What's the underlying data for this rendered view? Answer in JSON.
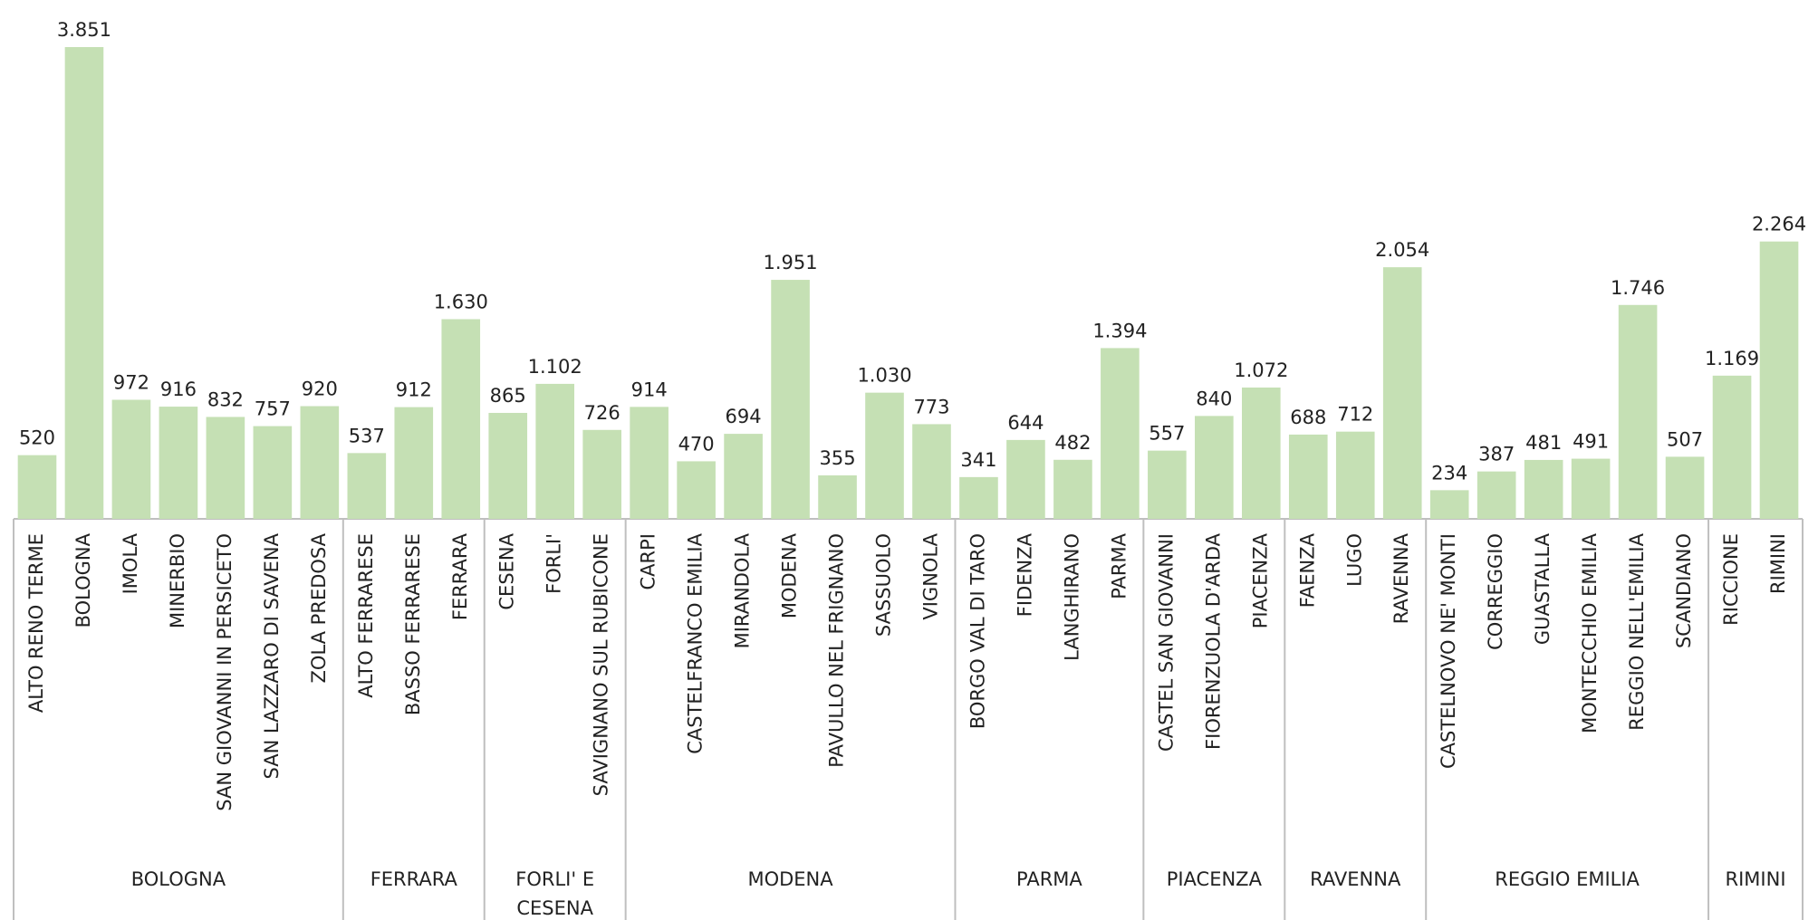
{
  "chart_data": {
    "type": "bar",
    "color": "#c5e0b4",
    "groups": [
      {
        "name": "BOLOGNA",
        "categories": [
          "ALTO RENO TERME",
          "BOLOGNA",
          "IMOLA",
          "MINERBIO",
          "SAN GIOVANNI IN PERSICETO",
          "SAN LAZZARO DI SAVENA",
          "ZOLA PREDOSA"
        ]
      },
      {
        "name": "FERRARA",
        "categories": [
          "ALTO FERRARESE",
          "BASSO FERRARESE",
          "FERRARA"
        ]
      },
      {
        "name": "FORLI' E CESENA",
        "categories": [
          "CESENA",
          "FORLI'",
          "SAVIGNANO SUL RUBICONE"
        ]
      },
      {
        "name": "MODENA",
        "categories": [
          "CARPI",
          "CASTELFRANCO EMILIA",
          "MIRANDOLA",
          "MODENA",
          "PAVULLO NEL FRIGNANO",
          "SASSUOLO",
          "VIGNOLA"
        ]
      },
      {
        "name": "PARMA",
        "categories": [
          "BORGO VAL DI TARO",
          "FIDENZA",
          "LANGHIRANO",
          "PARMA"
        ]
      },
      {
        "name": "PIACENZA",
        "categories": [
          "CASTEL SAN GIOVANNI",
          "FIORENZUOLA D'ARDA",
          "PIACENZA"
        ]
      },
      {
        "name": "RAVENNA",
        "categories": [
          "FAENZA",
          "LUGO",
          "RAVENNA"
        ]
      },
      {
        "name": "REGGIO EMILIA",
        "categories": [
          "CASTELNOVO NE' MONTI",
          "CORREGGIO",
          "GUASTALLA",
          "MONTECCHIO EMILIA",
          "REGGIO NELL'EMILIA",
          "SCANDIANO"
        ]
      },
      {
        "name": "RIMINI",
        "categories": [
          "RICCIONE",
          "RIMINI"
        ]
      }
    ],
    "values": [
      520,
      3851,
      972,
      916,
      832,
      757,
      920,
      537,
      912,
      1630,
      865,
      1102,
      726,
      914,
      470,
      694,
      1951,
      355,
      1030,
      773,
      341,
      644,
      482,
      1394,
      557,
      840,
      1072,
      688,
      712,
      2054,
      234,
      387,
      481,
      491,
      1746,
      507,
      1169,
      2264
    ],
    "value_labels": [
      "520",
      "3.851",
      "972",
      "916",
      "832",
      "757",
      "920",
      "537",
      "912",
      "1.630",
      "865",
      "1.102",
      "726",
      "914",
      "470",
      "694",
      "1.951",
      "355",
      "1.030",
      "773",
      "341",
      "644",
      "482",
      "1.394",
      "557",
      "840",
      "1.072",
      "688",
      "712",
      "2.054",
      "234",
      "387",
      "481",
      "491",
      "1.746",
      "507",
      "1.169",
      "2.264"
    ]
  }
}
